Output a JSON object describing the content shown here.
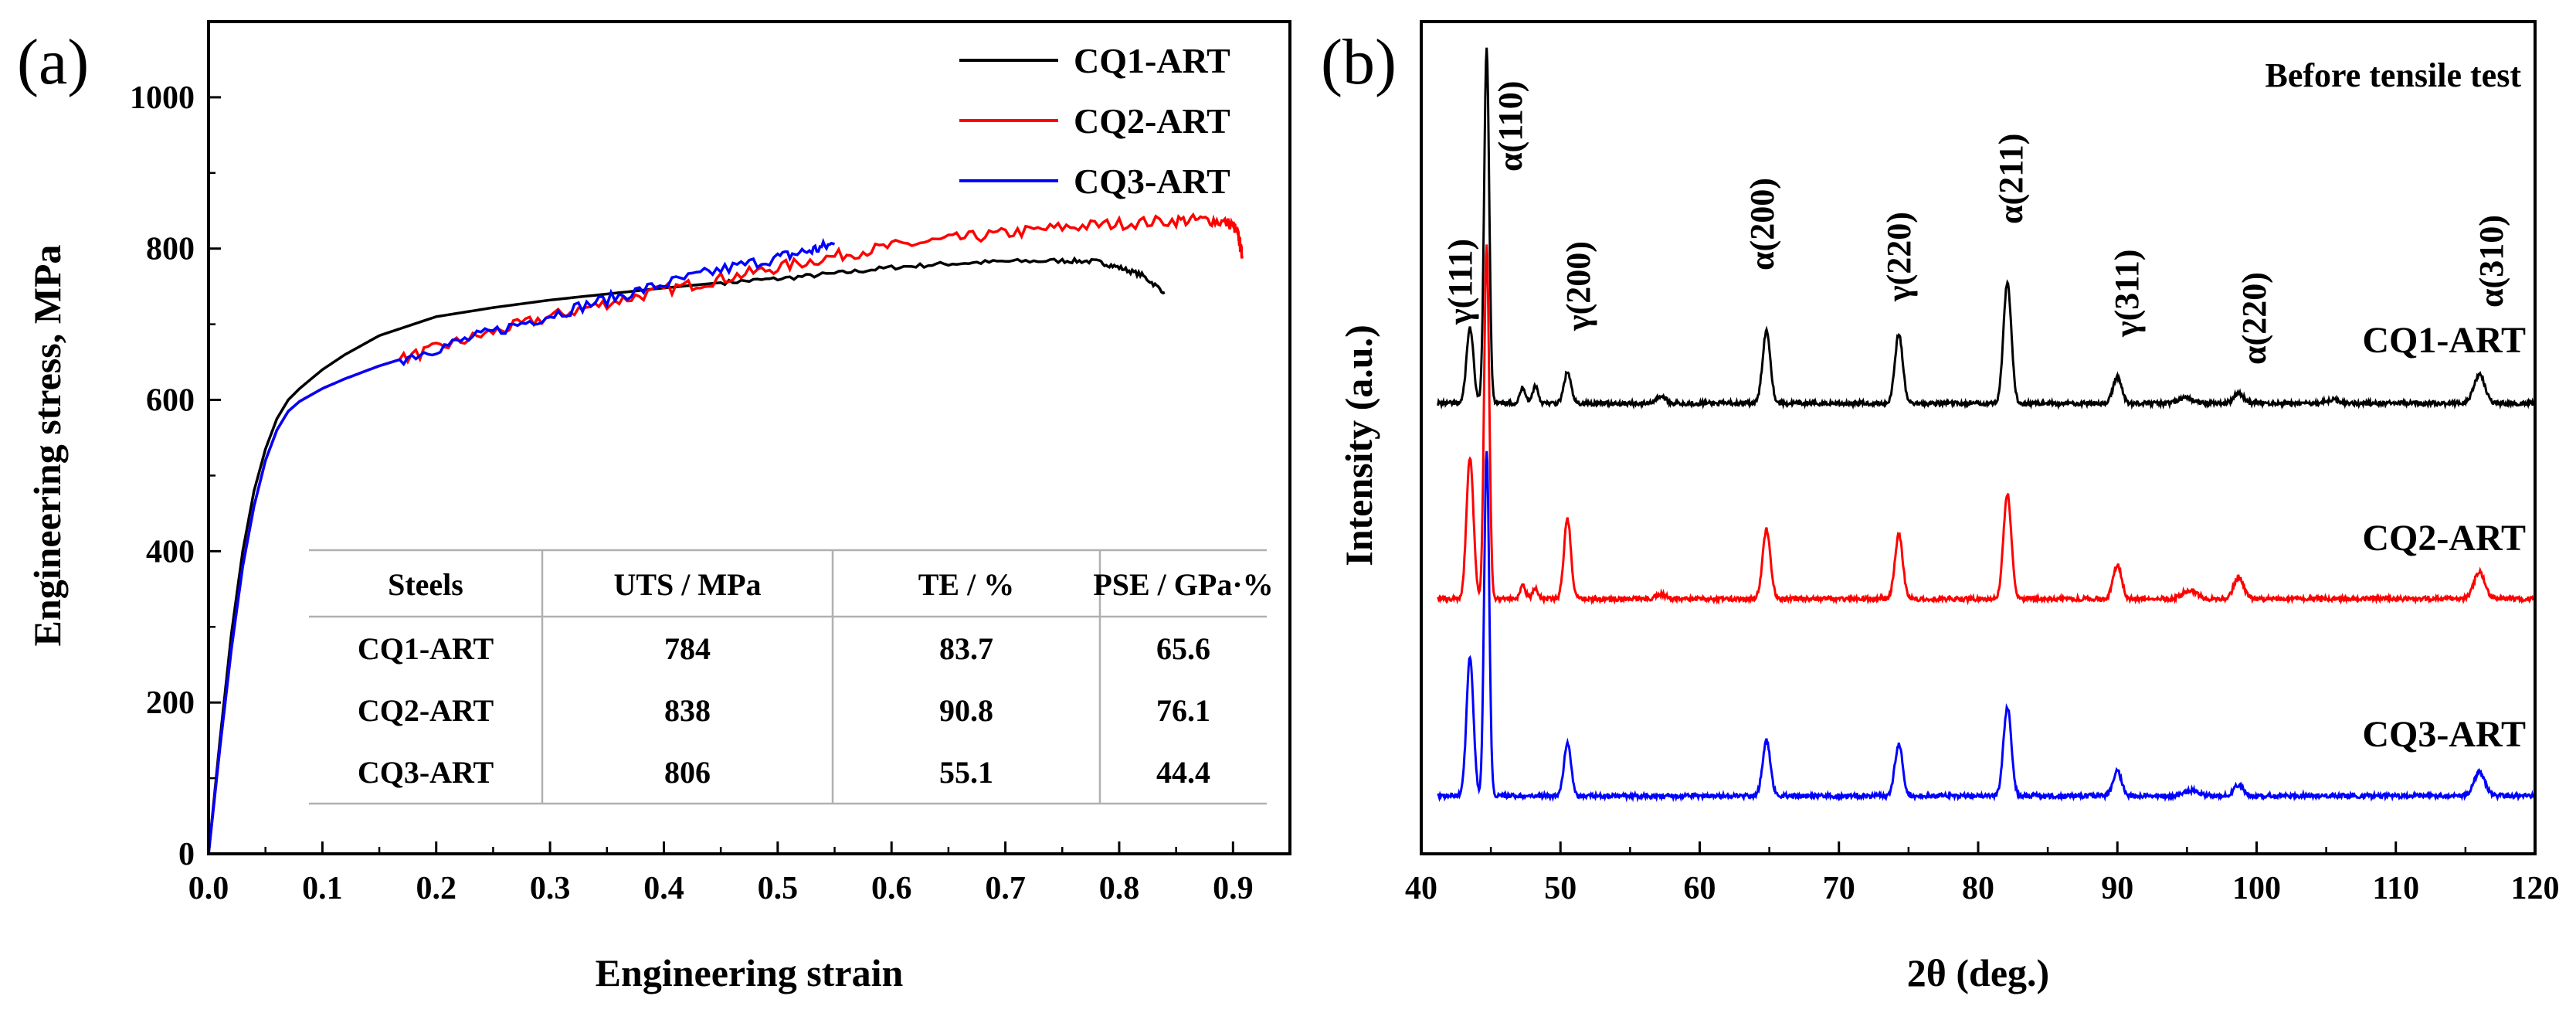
{
  "colors": {
    "CQ1-ART": "#000000",
    "CQ2-ART": "#ff0000",
    "CQ3-ART": "#0000ff",
    "axis": "#000000",
    "table_line": "#b0b0b0"
  },
  "chart_data": [
    {
      "type": "line",
      "panel_label": "(a)",
      "xlabel": "Engineering strain",
      "ylabel": "Engineering stress, MPa",
      "xlim": [
        0.0,
        0.95
      ],
      "ylim": [
        0,
        1100
      ],
      "xticks": [
        0.0,
        0.1,
        0.2,
        0.3,
        0.4,
        0.5,
        0.6,
        0.7,
        0.8,
        0.9
      ],
      "xtick_labels": [
        "0.0",
        "0.1",
        "0.2",
        "0.3",
        "0.4",
        "0.5",
        "0.6",
        "0.7",
        "0.8",
        "0.9"
      ],
      "yticks": [
        0,
        200,
        400,
        600,
        800,
        1000
      ],
      "ytick_labels": [
        "0",
        "200",
        "400",
        "600",
        "800",
        "1000"
      ],
      "legend": {
        "placement": "top-right",
        "entries": [
          "CQ1-ART",
          "CQ2-ART",
          "CQ3-ART"
        ]
      },
      "series": [
        {
          "name": "CQ1-ART",
          "x": [
            0.0,
            0.01,
            0.02,
            0.03,
            0.04,
            0.05,
            0.06,
            0.07,
            0.08,
            0.1,
            0.12,
            0.15,
            0.2,
            0.25,
            0.3,
            0.35,
            0.4,
            0.45,
            0.5,
            0.55,
            0.6,
            0.65,
            0.7,
            0.75,
            0.78,
            0.8,
            0.82,
            0.84
          ],
          "y": [
            0,
            150,
            290,
            400,
            480,
            535,
            575,
            600,
            615,
            640,
            660,
            685,
            710,
            722,
            732,
            740,
            748,
            755,
            760,
            767,
            775,
            780,
            783,
            784,
            783,
            775,
            765,
            742
          ]
        },
        {
          "name": "CQ2-ART",
          "x": [
            0.0,
            0.01,
            0.02,
            0.03,
            0.04,
            0.05,
            0.06,
            0.07,
            0.08,
            0.1,
            0.12,
            0.15,
            0.2,
            0.25,
            0.3,
            0.35,
            0.4,
            0.45,
            0.5,
            0.55,
            0.6,
            0.65,
            0.7,
            0.75,
            0.8,
            0.85,
            0.88,
            0.9,
            0.905,
            0.908
          ],
          "y": [
            0,
            140,
            270,
            380,
            460,
            520,
            560,
            585,
            598,
            615,
            628,
            645,
            668,
            690,
            710,
            728,
            745,
            760,
            775,
            790,
            803,
            812,
            820,
            828,
            833,
            837,
            838,
            832,
            815,
            790
          ]
        },
        {
          "name": "CQ3-ART",
          "x": [
            0.0,
            0.01,
            0.02,
            0.03,
            0.04,
            0.05,
            0.06,
            0.07,
            0.08,
            0.1,
            0.12,
            0.15,
            0.2,
            0.25,
            0.3,
            0.35,
            0.4,
            0.45,
            0.5,
            0.53,
            0.55
          ],
          "y": [
            0,
            140,
            270,
            380,
            460,
            520,
            560,
            585,
            598,
            615,
            628,
            645,
            668,
            690,
            712,
            733,
            753,
            772,
            788,
            798,
            806
          ]
        }
      ],
      "table": {
        "headers": [
          "Steels",
          "UTS / MPa",
          "TE / %",
          "PSE / GPa·%"
        ],
        "rows": [
          [
            "CQ1-ART",
            "784",
            "83.7",
            "65.6"
          ],
          [
            "CQ2-ART",
            "838",
            "90.8",
            "76.1"
          ],
          [
            "CQ3-ART",
            "806",
            "55.1",
            "44.4"
          ]
        ]
      }
    },
    {
      "type": "line",
      "panel_label": "(b)",
      "xlabel": "2θ (deg.)",
      "ylabel": "Intensity (a.u.)",
      "note": "Before tensile test",
      "xlim": [
        40,
        120
      ],
      "xticks": [
        40,
        50,
        60,
        70,
        80,
        90,
        100,
        110,
        120
      ],
      "xtick_labels": [
        "40",
        "50",
        "60",
        "70",
        "80",
        "90",
        "100",
        "110",
        "120"
      ],
      "y_ticks_shown": false,
      "peaks": [
        {
          "label": "γ(111)",
          "x": 43.5
        },
        {
          "label": "α(110)",
          "x": 44.7
        },
        {
          "label": "γ(200)",
          "x": 50.5
        },
        {
          "label": "α(200)",
          "x": 64.8
        },
        {
          "label": "γ(220)",
          "x": 74.3
        },
        {
          "label": "α(211)",
          "x": 82.1
        },
        {
          "label": "γ(311)",
          "x": 90.0
        },
        {
          "label": "α(220)",
          "x": 98.7
        },
        {
          "label": "α(310)",
          "x": 116.0
        }
      ],
      "series": [
        {
          "name": "CQ1-ART",
          "baseline": 1.0,
          "peaks": [
            [
              43.5,
              0.85,
              0.25
            ],
            [
              44.7,
              4.0,
              0.18
            ],
            [
              47.3,
              0.18,
              0.2
            ],
            [
              48.2,
              0.2,
              0.2
            ],
            [
              50.5,
              0.35,
              0.25
            ],
            [
              57.2,
              0.08,
              0.35
            ],
            [
              64.8,
              0.82,
              0.28
            ],
            [
              74.3,
              0.78,
              0.28
            ],
            [
              82.1,
              1.35,
              0.28
            ],
            [
              90.0,
              0.3,
              0.3
            ],
            [
              94.9,
              0.06,
              0.5
            ],
            [
              98.7,
              0.12,
              0.35
            ],
            [
              105.5,
              0.04,
              0.5
            ],
            [
              116.0,
              0.32,
              0.4
            ]
          ]
        },
        {
          "name": "CQ2-ART",
          "baseline": 0.0,
          "peaks": [
            [
              43.5,
              1.6,
              0.25
            ],
            [
              44.7,
              4.0,
              0.18
            ],
            [
              47.3,
              0.14,
              0.2
            ],
            [
              48.2,
              0.12,
              0.2
            ],
            [
              50.5,
              0.9,
              0.25
            ],
            [
              57.2,
              0.05,
              0.35
            ],
            [
              64.8,
              0.78,
              0.28
            ],
            [
              74.3,
              0.72,
              0.28
            ],
            [
              82.1,
              1.18,
              0.28
            ],
            [
              90.0,
              0.38,
              0.3
            ],
            [
              95.2,
              0.1,
              0.5
            ],
            [
              98.7,
              0.24,
              0.35
            ],
            [
              116.0,
              0.3,
              0.4
            ]
          ]
        },
        {
          "name": "CQ3-ART",
          "baseline": -1.0,
          "peaks": [
            [
              43.5,
              1.55,
              0.25
            ],
            [
              44.7,
              3.9,
              0.18
            ],
            [
              50.5,
              0.6,
              0.25
            ],
            [
              64.8,
              0.62,
              0.28
            ],
            [
              74.3,
              0.58,
              0.28
            ],
            [
              82.1,
              1.0,
              0.28
            ],
            [
              90.0,
              0.28,
              0.3
            ],
            [
              95.3,
              0.06,
              0.5
            ],
            [
              98.7,
              0.12,
              0.35
            ],
            [
              116.0,
              0.26,
              0.4
            ]
          ]
        }
      ]
    }
  ]
}
